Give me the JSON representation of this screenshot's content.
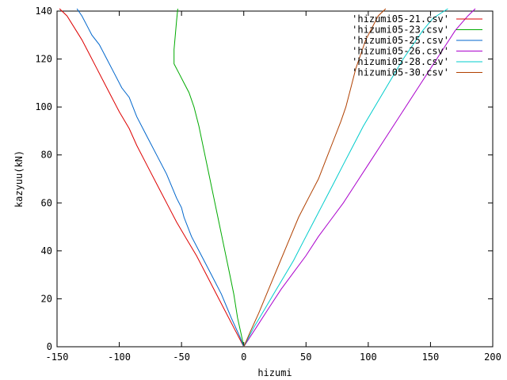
{
  "chart_data": {
    "type": "line",
    "xlabel": "hizumi",
    "ylabel": "kazyuu(kN)",
    "xlim": [
      -150,
      200
    ],
    "ylim": [
      0,
      140
    ],
    "xticks": [
      "-150",
      "-100",
      "-50",
      "0",
      "50",
      "100",
      "150",
      "200"
    ],
    "yticks": [
      "0",
      "20",
      "40",
      "60",
      "80",
      "100",
      "120",
      "140"
    ],
    "grid": false,
    "legend_position": "top-right",
    "series": [
      {
        "name": "'hizumi05-21.csv'",
        "color": "#dd0000",
        "x": [
          0,
          -3,
          -8,
          -15,
          -22,
          -30,
          -38,
          -46,
          -54,
          -62,
          -70,
          -78,
          -86,
          -92,
          -100,
          -106,
          -112,
          -118,
          -124,
          -130,
          -136,
          -142,
          -148
        ],
        "y": [
          0,
          3,
          8,
          15,
          22,
          30,
          38,
          45,
          52,
          60,
          68,
          76,
          84,
          91,
          98,
          104,
          110,
          116,
          122,
          128,
          133,
          138,
          141
        ]
      },
      {
        "name": "'hizumi05-23.csv'",
        "color": "#00aa00",
        "x": [
          0,
          -2,
          -5,
          -8,
          -12,
          -16,
          -20,
          -24,
          -28,
          -32,
          -36,
          -40,
          -44,
          -48,
          -52,
          -56,
          -56,
          -55,
          -54,
          -53
        ],
        "y": [
          0,
          5,
          12,
          22,
          32,
          42,
          52,
          62,
          72,
          82,
          92,
          100,
          106,
          110,
          114,
          118,
          124,
          130,
          136,
          141
        ]
      },
      {
        "name": "'hizumi05-25.csv'",
        "color": "#0066cc",
        "x": [
          0,
          -3,
          -10,
          -18,
          -26,
          -34,
          -42,
          -48,
          -50,
          -54,
          -62,
          -70,
          -78,
          -86,
          -92,
          -98,
          -104,
          -110,
          -116,
          -122,
          -126,
          -130,
          -134
        ],
        "y": [
          0,
          4,
          12,
          22,
          30,
          38,
          46,
          54,
          58,
          62,
          72,
          80,
          88,
          96,
          104,
          108,
          114,
          120,
          126,
          130,
          134,
          138,
          141
        ]
      },
      {
        "name": "'hizumi05-26.csv'",
        "color": "#aa00cc",
        "x": [
          0,
          10,
          20,
          30,
          40,
          50,
          60,
          70,
          80,
          90,
          100,
          110,
          120,
          130,
          140,
          150,
          160,
          170,
          180,
          186
        ],
        "y": [
          0,
          8,
          16,
          24,
          31,
          38,
          46,
          53,
          60,
          68,
          76,
          84,
          92,
          100,
          108,
          116,
          124,
          132,
          138,
          141
        ]
      },
      {
        "name": "'hizumi05-28.csv'",
        "color": "#00cccc",
        "x": [
          0,
          8,
          16,
          24,
          32,
          40,
          48,
          56,
          64,
          72,
          80,
          88,
          96,
          104,
          112,
          120,
          128,
          136,
          144,
          152,
          158,
          164
        ],
        "y": [
          0,
          8,
          15,
          22,
          29,
          36,
          44,
          52,
          60,
          68,
          76,
          84,
          92,
          99,
          106,
          113,
          120,
          126,
          132,
          137,
          139,
          141
        ]
      },
      {
        "name": "'hizumi05-30.csv'",
        "color": "#b04000",
        "x": [
          0,
          5,
          12,
          20,
          28,
          36,
          44,
          52,
          60,
          66,
          72,
          78,
          82,
          86,
          90,
          94,
          98,
          102,
          108,
          114
        ],
        "y": [
          0,
          6,
          14,
          24,
          34,
          44,
          54,
          62,
          70,
          78,
          86,
          94,
          100,
          108,
          116,
          122,
          128,
          132,
          138,
          141
        ]
      }
    ]
  }
}
